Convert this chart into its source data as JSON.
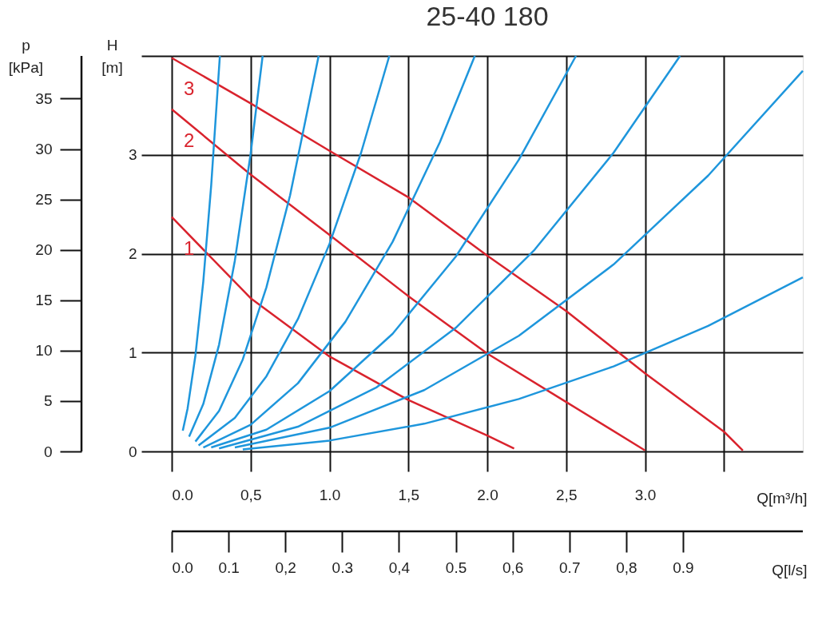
{
  "chart_data": {
    "type": "line",
    "title": "25-40 180",
    "xlabel": "Q[m³/h]",
    "ylabel": "H [m]",
    "y2label": "p [kPa]",
    "x2label": "Q[l/s]",
    "xlim": [
      0,
      4
    ],
    "xticks": [
      {
        "value": 0,
        "label": "0.0"
      },
      {
        "value": 0.5,
        "label": "0,5"
      },
      {
        "value": 1,
        "label": "1.0"
      },
      {
        "value": 1.5,
        "label": "1,5"
      },
      {
        "value": 2,
        "label": "2.0"
      },
      {
        "value": 2.5,
        "label": "2,5"
      },
      {
        "value": 3,
        "label": "3.0"
      },
      {
        "value": 3.5,
        "label": null
      }
    ],
    "ylim": [
      0,
      4
    ],
    "yticks": [
      0,
      1,
      2,
      3,
      {
        "value": 4,
        "label": null
      }
    ],
    "y2lim": [
      0,
      39.24
    ],
    "y2ticks": [
      0,
      5,
      10,
      15,
      20,
      25,
      30,
      35
    ],
    "x2lim": [
      0,
      1.111
    ],
    "x2ticks": [
      {
        "value": 0,
        "label": "0.0"
      },
      {
        "value": 0.1,
        "label": "0.1"
      },
      {
        "value": 0.2,
        "label": "0,2"
      },
      {
        "value": 0.3,
        "label": "0.3"
      },
      {
        "value": 0.4,
        "label": "0,4"
      },
      {
        "value": 0.5,
        "label": "0.5"
      },
      {
        "value": 0.6,
        "label": "0,6"
      },
      {
        "value": 0.7,
        "label": "0.7"
      },
      {
        "value": 0.8,
        "label": "0,8"
      },
      {
        "value": 0.9,
        "label": "0.9"
      }
    ],
    "grid": true,
    "legend": false,
    "marker": "none",
    "line_style": "solid",
    "series": [
      {
        "name": "3",
        "color": "#d9232d",
        "x": [
          0,
          0.5,
          1,
          1.5,
          2,
          2.5,
          3,
          3.5,
          3.62
        ],
        "values": [
          3.98,
          3.52,
          3.04,
          2.57,
          1.98,
          1.42,
          0.79,
          0.2,
          0.01
        ]
      },
      {
        "name": "2",
        "color": "#d9232d",
        "x": [
          0,
          0.5,
          1,
          1.5,
          2,
          2.5,
          3
        ],
        "values": [
          3.46,
          2.8,
          2.19,
          1.57,
          0.99,
          0.5,
          0.01
        ]
      },
      {
        "name": "1",
        "color": "#d9232d",
        "x": [
          0,
          0.5,
          1,
          1.5,
          2,
          2.17
        ],
        "values": [
          2.37,
          1.55,
          0.96,
          0.52,
          0.16,
          0.03
        ]
      },
      {
        "color": "#1e96dc",
        "x": [
          0.07,
          0.1,
          0.15,
          0.2,
          0.25,
          0.305
        ],
        "values": [
          0.21,
          0.43,
          0.97,
          1.72,
          2.69,
          4.0
        ]
      },
      {
        "color": "#1e96dc",
        "x": [
          0.11,
          0.2,
          0.3,
          0.4,
          0.5,
          0.576
        ],
        "values": [
          0.15,
          0.48,
          1.08,
          1.93,
          3.01,
          4.0
        ]
      },
      {
        "color": "#1e96dc",
        "x": [
          0.15,
          0.3,
          0.45,
          0.6,
          0.75,
          0.931
        ],
        "values": [
          0.1,
          0.41,
          0.93,
          1.66,
          2.59,
          4.0
        ]
      },
      {
        "color": "#1e96dc",
        "x": [
          0.17,
          0.4,
          0.6,
          0.8,
          1.0,
          1.2,
          1.379
        ],
        "values": [
          0.06,
          0.34,
          0.76,
          1.34,
          2.1,
          3.02,
          4.0
        ]
      },
      {
        "color": "#1e96dc",
        "x": [
          0.2,
          0.5,
          0.8,
          1.1,
          1.4,
          1.7,
          1.921
        ],
        "values": [
          0.04,
          0.27,
          0.69,
          1.31,
          2.12,
          3.13,
          4.0
        ]
      },
      {
        "color": "#1e96dc",
        "x": [
          0.25,
          0.6,
          1.0,
          1.4,
          1.8,
          2.2,
          2.562
        ],
        "values": [
          0.04,
          0.22,
          0.61,
          1.19,
          1.97,
          2.95,
          4.0
        ]
      },
      {
        "color": "#1e96dc",
        "x": [
          0.3,
          0.8,
          1.3,
          1.8,
          2.3,
          2.8,
          3.222
        ],
        "values": [
          0.03,
          0.25,
          0.65,
          1.25,
          2.04,
          3.02,
          4.0
        ]
      },
      {
        "color": "#1e96dc",
        "x": [
          0.4,
          1.0,
          1.6,
          2.2,
          2.8,
          3.4,
          4.0
        ],
        "values": [
          0.04,
          0.24,
          0.62,
          1.17,
          1.89,
          2.79,
          3.85
        ]
      },
      {
        "color": "#1e96dc",
        "x": [
          0.45,
          1.0,
          1.6,
          2.2,
          2.8,
          3.4,
          4.0
        ],
        "values": [
          0.02,
          0.11,
          0.28,
          0.53,
          0.86,
          1.27,
          1.76
        ]
      }
    ]
  }
}
